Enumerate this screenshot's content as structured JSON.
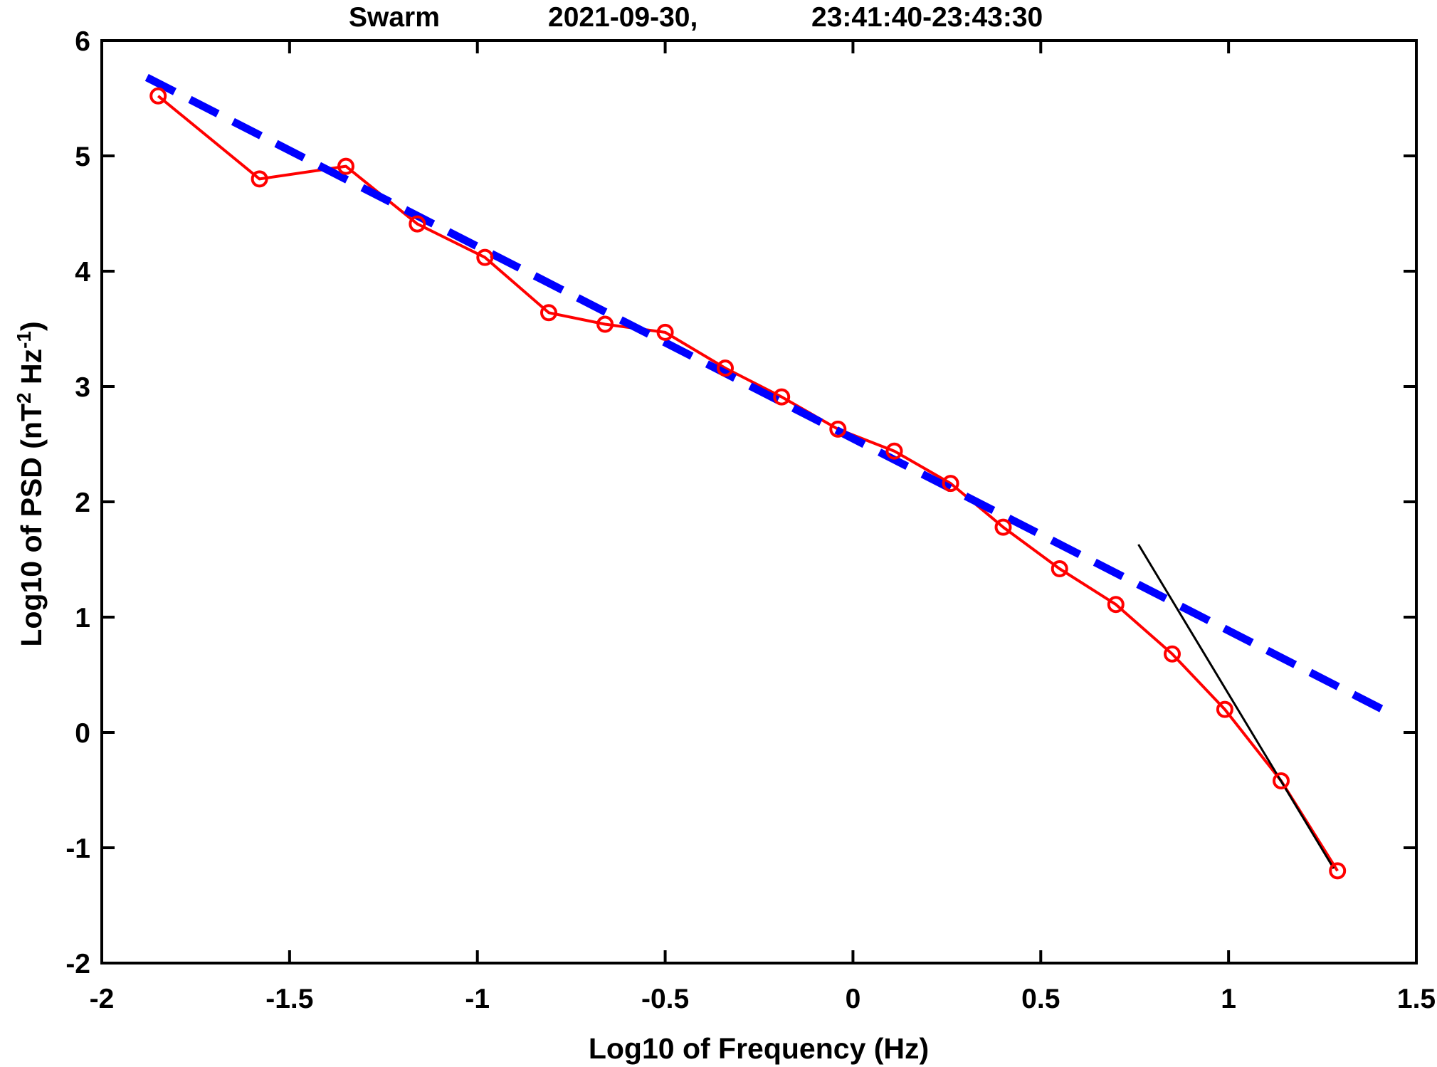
{
  "chart_data": {
    "type": "line",
    "title_parts": [
      "Swarm",
      "2021-09-30,",
      "23:41:40-23:43:30"
    ],
    "xlabel": "Log10 of Frequency (Hz)",
    "ylabel": {
      "prefix": "Log10 of PSD (nT",
      "sup1": "2",
      "middle": " Hz",
      "sup2": "-1",
      "suffix": ")"
    },
    "xlim": [
      -2,
      1.5
    ],
    "ylim": [
      -2,
      6
    ],
    "xticks": [
      -2,
      -1.5,
      -1,
      -0.5,
      0,
      0.5,
      1,
      1.5
    ],
    "xtick_labels": [
      "-2",
      "-1.5",
      "-1",
      "-0.5",
      "0",
      "0.5",
      "1",
      "1.5"
    ],
    "yticks": [
      -2,
      -1,
      0,
      1,
      2,
      3,
      4,
      5,
      6
    ],
    "ytick_labels": [
      "-2",
      "-1",
      "0",
      "1",
      "2",
      "3",
      "4",
      "5",
      "6"
    ],
    "grid": false,
    "series": [
      {
        "style": "solid line with circle markers",
        "color": "#ff0000",
        "x": [
          -1.85,
          -1.58,
          -1.35,
          -1.16,
          -0.98,
          -0.81,
          -0.66,
          -0.5,
          -0.34,
          -0.19,
          -0.04,
          0.11,
          0.26,
          0.4,
          0.55,
          0.7,
          0.85,
          0.99,
          1.14,
          1.29
        ],
        "y": [
          5.52,
          4.8,
          4.91,
          4.41,
          4.12,
          3.64,
          3.54,
          3.47,
          3.16,
          2.91,
          2.63,
          2.44,
          2.16,
          1.78,
          1.42,
          1.11,
          0.68,
          0.2,
          -0.42,
          -1.2
        ]
      },
      {
        "style": "dashed linear fit",
        "color": "#0000ff",
        "x": [
          -1.88,
          1.44
        ],
        "y": [
          5.68,
          0.15
        ]
      },
      {
        "style": "thin solid linear fit",
        "color": "#000000",
        "x": [
          0.76,
          1.28
        ],
        "y": [
          1.63,
          -1.18
        ]
      }
    ]
  }
}
